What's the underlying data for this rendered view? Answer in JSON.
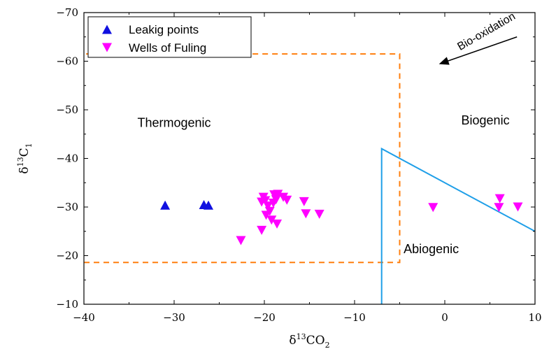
{
  "chart_data": {
    "type": "scatter",
    "xlabel": {
      "main": "δ",
      "sup": "13",
      "rest": "CO",
      "sub": "2"
    },
    "ylabel": {
      "main": "δ",
      "sup": "13",
      "rest": "C",
      "sub": "1"
    },
    "xlim": [
      -40,
      10
    ],
    "ylim": [
      -10,
      -70
    ],
    "x_ticks": [
      -40,
      -30,
      -20,
      -10,
      0,
      10
    ],
    "x_tick_labels": [
      "−40",
      "−30",
      "−20",
      "−10",
      "0",
      "10"
    ],
    "y_ticks": [
      -10,
      -20,
      -30,
      -40,
      -50,
      -60,
      -70
    ],
    "y_tick_labels": [
      "−10",
      "−20",
      "−30",
      "−40",
      "−50",
      "−60",
      "−70"
    ],
    "grid": false,
    "legend_position": "top-left",
    "series": [
      {
        "name": "Leakig points",
        "marker": "triangle-up",
        "color": "#1010e0",
        "points": [
          [
            -31.0,
            -30.4
          ],
          [
            -26.7,
            -30.5
          ],
          [
            -26.2,
            -30.4
          ]
        ]
      },
      {
        "name": "Wells of Fuling",
        "marker": "triangle-down",
        "color": "#ff00ff",
        "points": [
          [
            -22.6,
            -23.1
          ],
          [
            -20.3,
            -25.2
          ],
          [
            -20.3,
            -31.0
          ],
          [
            -20.1,
            -32.0
          ],
          [
            -19.9,
            -31.3
          ],
          [
            -19.8,
            -28.3
          ],
          [
            -19.6,
            -30.2
          ],
          [
            -19.4,
            -29.1
          ],
          [
            -19.2,
            -27.3
          ],
          [
            -19.0,
            -30.8
          ],
          [
            -18.9,
            -32.5
          ],
          [
            -18.7,
            -31.5
          ],
          [
            -18.6,
            -26.5
          ],
          [
            -18.5,
            -32.6
          ],
          [
            -17.9,
            -32.0
          ],
          [
            -17.5,
            -31.4
          ],
          [
            -15.6,
            -31.1
          ],
          [
            -15.4,
            -28.6
          ],
          [
            -13.9,
            -28.5
          ],
          [
            -1.3,
            -29.9
          ],
          [
            6.1,
            -31.7
          ],
          [
            6.0,
            -29.9
          ],
          [
            8.1,
            -30.0
          ]
        ]
      }
    ],
    "regions": [
      {
        "label": "Thermogenic",
        "label_at": [
          -30,
          -46.5
        ],
        "style": "dashed",
        "color": "#ff7f0e",
        "polyline": [
          [
            -40,
            -18.6
          ],
          [
            -5,
            -18.6
          ],
          [
            -5,
            -61.5
          ],
          [
            -40,
            -61.5
          ]
        ]
      },
      {
        "label": "Abiogenic",
        "label_at": [
          -1.5,
          -20.5
        ],
        "style": "solid",
        "color": "#1f9fe8",
        "polyline": [
          [
            -7,
            -10
          ],
          [
            -7,
            -42
          ],
          [
            10,
            -25
          ]
        ]
      },
      {
        "label": "Biogenic",
        "label_at": [
          4.5,
          -47
        ],
        "style": "none"
      }
    ],
    "annotation": {
      "text": "Bio-oxidation",
      "arrow_from": [
        8,
        -65
      ],
      "arrow_to": [
        -0.5,
        -59.5
      ],
      "text_at": [
        4.8,
        -65.5
      ],
      "rotation": -30
    }
  }
}
